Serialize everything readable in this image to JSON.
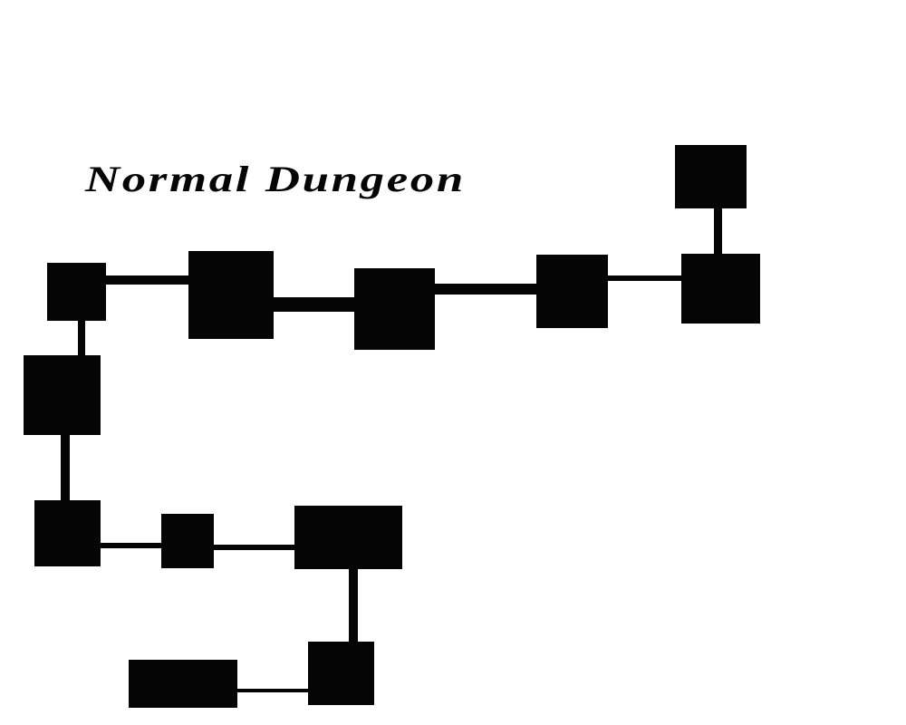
{
  "title": "Normal Dungeon",
  "colors": {
    "background": "#ffffff",
    "ink": "#050505"
  }
}
